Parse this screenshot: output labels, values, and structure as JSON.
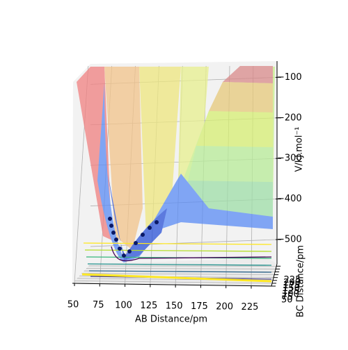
{
  "chart_data": {
    "type": "surface3d",
    "xlabel": "AB Distance/pm",
    "ylabel": "BC Distance/pm",
    "zlabel": "V/kJ.mol⁻¹",
    "xlim": [
      50,
      245
    ],
    "xticks": [
      50,
      75,
      100,
      125,
      150,
      175,
      200,
      225
    ],
    "ylim": [
      50,
      245
    ],
    "yticks": [
      50,
      75,
      100,
      125,
      150,
      175,
      200,
      225
    ],
    "zlim": [
      -560,
      -60
    ],
    "zticks": [
      {
        "value": -500,
        "label": "−500"
      },
      {
        "value": -400,
        "label": "−400"
      },
      {
        "value": -300,
        "label": "−300"
      },
      {
        "value": -200,
        "label": "−200"
      },
      {
        "value": -100,
        "label": "−100"
      }
    ],
    "grid": true
  }
}
